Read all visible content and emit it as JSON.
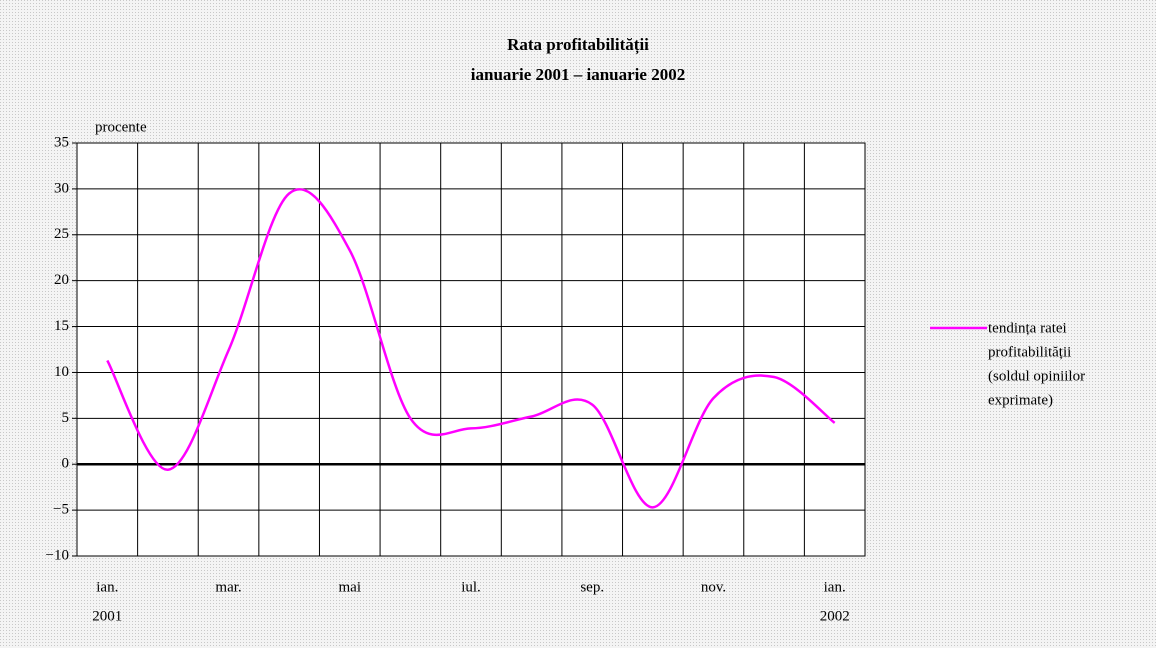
{
  "chart_data": {
    "type": "line",
    "title": [
      "Rata profitabilității",
      "ianuarie 2001 – ianuarie 2002"
    ],
    "y_label": "procente",
    "categories": [
      "ian.",
      null,
      "mar.",
      null,
      "mai",
      null,
      "iul.",
      null,
      "sep.",
      null,
      "nov.",
      null,
      "ian."
    ],
    "x_sublabels": [
      "2001",
      null,
      null,
      null,
      null,
      null,
      null,
      null,
      null,
      null,
      null,
      null,
      "2002"
    ],
    "series": [
      {
        "name": [
          "tendința ratei",
          "profitabilității",
          "(soldul opiniilor",
          "exprimate)"
        ],
        "color": "#ff00ff",
        "values": [
          11.3,
          -0.6,
          12.4,
          29.5,
          23.3,
          5,
          3.9,
          5.2,
          6.5,
          -4.7,
          7.2,
          9.5,
          4.5
        ]
      }
    ],
    "ylim": [
      -10,
      35
    ],
    "yticks": [
      {
        "value": -10,
        "label": "−10"
      },
      {
        "value": -5,
        "label": "−5"
      },
      0,
      5,
      10,
      15,
      20,
      25,
      30,
      35
    ],
    "grid": true,
    "smooth": true,
    "legend": "right"
  }
}
